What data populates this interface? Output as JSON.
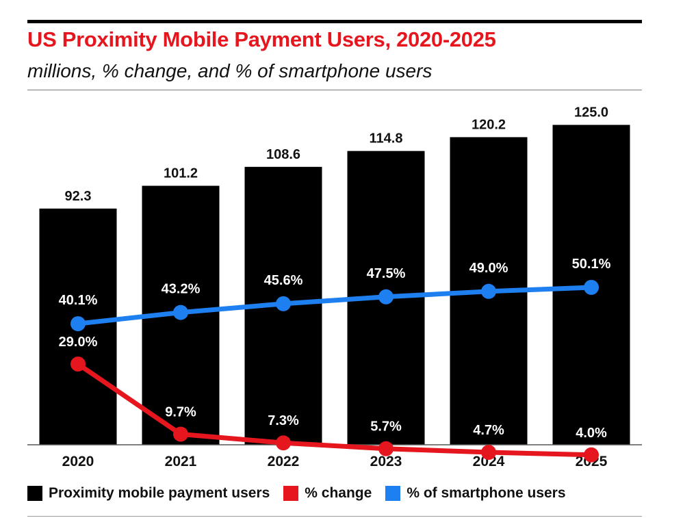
{
  "chart_data": {
    "type": "bar",
    "title": "US Proximity Mobile Payment Users, 2020-2025",
    "subtitle": "millions, % change, and % of smartphone users",
    "categories": [
      "2020",
      "2021",
      "2022",
      "2023",
      "2024",
      "2025"
    ],
    "ylim": [
      0,
      135
    ],
    "pct_ylim": [
      0,
      70
    ],
    "grid": false,
    "legend_position": "bottom",
    "series": [
      {
        "name": "Proximity mobile payment users",
        "kind": "bar",
        "color": "#000000",
        "values": [
          92.3,
          101.2,
          108.6,
          114.8,
          120.2,
          125.0
        ],
        "labels": [
          "92.3",
          "101.2",
          "108.6",
          "114.8",
          "120.2",
          "125.0"
        ]
      },
      {
        "name": "% change",
        "kind": "line",
        "color": "#e5161d",
        "values": [
          29.0,
          9.7,
          7.3,
          5.7,
          4.7,
          4.0
        ],
        "labels": [
          "29.0%",
          "9.7%",
          "7.3%",
          "5.7%",
          "4.7%",
          "4.0%"
        ]
      },
      {
        "name": "% of smartphone users",
        "kind": "line",
        "color": "#1e7ff0",
        "values": [
          40.1,
          43.2,
          45.6,
          47.5,
          49.0,
          50.1
        ],
        "labels": [
          "40.1%",
          "43.2%",
          "45.6%",
          "47.5%",
          "49.0%",
          "50.1%"
        ]
      }
    ]
  }
}
